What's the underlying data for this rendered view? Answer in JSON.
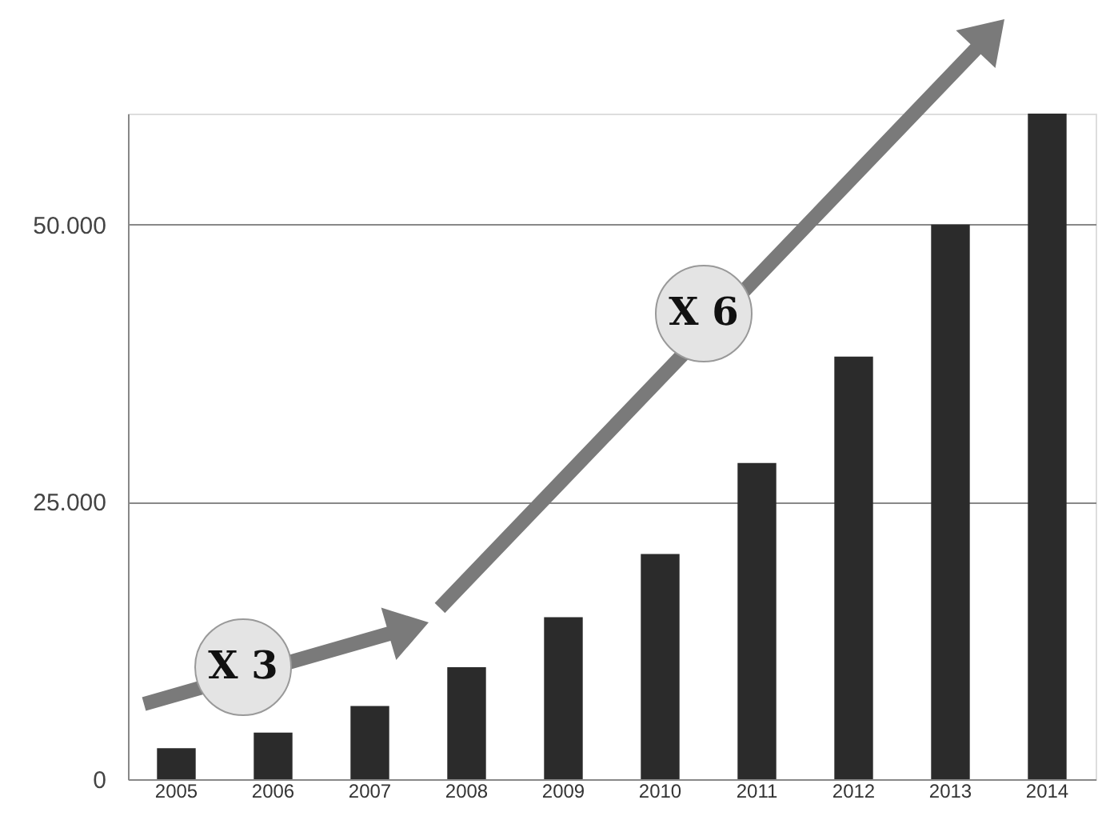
{
  "chart_data": {
    "type": "bar",
    "categories": [
      "2005",
      "2006",
      "2007",
      "2008",
      "2009",
      "2010",
      "2011",
      "2012",
      "2013",
      "2014"
    ],
    "values": [
      2800,
      4200,
      6600,
      10100,
      14600,
      20300,
      28500,
      38100,
      50000,
      60000
    ],
    "color": "#2b2b2b",
    "ylim": [
      0,
      60000
    ],
    "yticks": [
      0,
      {
        "value": 25000,
        "label": "25.000"
      },
      {
        "value": 50000,
        "label": "50.000"
      }
    ],
    "grid": "y",
    "annotations": [
      "X 3",
      "X 6"
    ]
  }
}
